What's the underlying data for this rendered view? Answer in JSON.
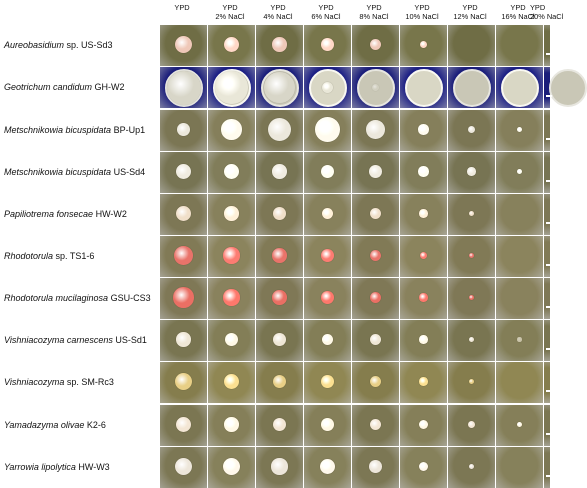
{
  "figure": {
    "columns": [
      {
        "line1": "YPD",
        "line2": ""
      },
      {
        "line1": "YPD",
        "line2": "2% NaCl"
      },
      {
        "line1": "YPD",
        "line2": "4% NaCl"
      },
      {
        "line1": "YPD",
        "line2": "6% NaCl"
      },
      {
        "line1": "YPD",
        "line2": "8% NaCl"
      },
      {
        "line1": "YPD",
        "line2": "10% NaCl"
      },
      {
        "line1": "YPD",
        "line2": "12% NaCl"
      },
      {
        "line1": "YPD",
        "line2": "16% NaCl"
      },
      {
        "line1": "YPD",
        "line2": "20% NaCl"
      }
    ],
    "rows": [
      {
        "species": "Aureobasidium",
        "rest": " sp. US-Sd3",
        "bg": "#6f6d45",
        "colony": "#efc8b8",
        "growth": [
          1.0,
          0.9,
          0.85,
          0.75,
          0.65,
          0.45,
          0.0,
          0.0,
          0.0
        ]
      },
      {
        "species": "Geotrichum candidum",
        "rest": " GH-W2",
        "bg": "#1a1d7a",
        "colony": "#d8d6c8",
        "plate": true,
        "growth": [
          1.0,
          0.95,
          0.9,
          0.35,
          0.2,
          0.0,
          0.0,
          0.0,
          0.0
        ]
      },
      {
        "species": "Metschnikowia bicuspidata",
        "rest": " BP-Up1",
        "bg": "#7b7654",
        "colony": "#ece8dc",
        "growth": [
          0.75,
          1.2,
          1.4,
          1.45,
          1.1,
          0.6,
          0.45,
          0.35,
          0.0
        ]
      },
      {
        "species": "Metschnikowia bicuspidata",
        "rest": " US-Sd4",
        "bg": "#777453",
        "colony": "#f0ece0",
        "growth": [
          0.9,
          0.9,
          0.85,
          0.8,
          0.75,
          0.6,
          0.5,
          0.35,
          0.0
        ]
      },
      {
        "species": "Papiliotrema fonsecae",
        "rest": " HW-W2",
        "bg": "#7d7755",
        "colony": "#f0dfc9",
        "growth": [
          0.9,
          0.85,
          0.75,
          0.7,
          0.65,
          0.5,
          0.35,
          0.0,
          0.0
        ]
      },
      {
        "species": "Rhodotorula",
        "rest": " sp. TS1-6",
        "bg": "#817a56",
        "colony": "#e9736a",
        "growth": [
          1.1,
          0.95,
          0.85,
          0.75,
          0.65,
          0.45,
          0.3,
          0.0,
          0.0
        ]
      },
      {
        "species": "Rhodotorula mucilaginosa",
        "rest": " GSU-CS3",
        "bg": "#7f7856",
        "colony": "#ea6f64",
        "growth": [
          1.2,
          0.95,
          0.85,
          0.75,
          0.65,
          0.5,
          0.35,
          0.0,
          0.0
        ]
      },
      {
        "species": "Vishniacozyma carnescens",
        "rest": " US-Sd1",
        "bg": "#797551",
        "colony": "#efe7d6",
        "growth": [
          0.85,
          0.8,
          0.75,
          0.7,
          0.65,
          0.5,
          0.35,
          0.25,
          0.0
        ]
      },
      {
        "species": "Vishniacozyma",
        "rest": " sp. SM-Rc3",
        "bg": "#857d4d",
        "colony": "#e8cf86",
        "growth": [
          1.0,
          0.9,
          0.8,
          0.75,
          0.7,
          0.5,
          0.35,
          0.0,
          0.0
        ]
      },
      {
        "species": "Yamadazyma olivae",
        "rest": " K2-6",
        "bg": "#7b7652",
        "colony": "#f3e6d4",
        "growth": [
          0.9,
          0.85,
          0.8,
          0.75,
          0.7,
          0.55,
          0.45,
          0.35,
          0.0
        ]
      },
      {
        "species": "Yarrowia lipolytica",
        "rest": " HW-W3",
        "bg": "#7c7754",
        "colony": "#ede6da",
        "growth": [
          1.0,
          1.0,
          0.95,
          0.9,
          0.75,
          0.55,
          0.35,
          0.0,
          0.0
        ]
      }
    ]
  }
}
